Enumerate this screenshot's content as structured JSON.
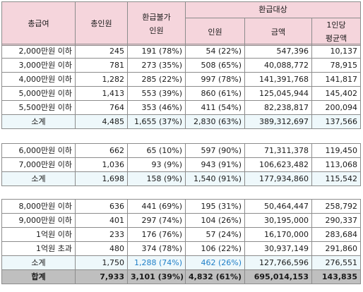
{
  "header": {
    "col_income": "총급여",
    "col_total": "총인원",
    "col_nonrefund": "환급불가\n인원",
    "col_refund_group": "환급대상",
    "col_refund_people": "인원",
    "col_refund_amount": "금액",
    "col_per_capita": "1인당\n평균액"
  },
  "groups": [
    {
      "rows": [
        {
          "cat": "2,000만원 이하",
          "total": "245",
          "nonrefund": "191 (78%)",
          "refund": "54 (22%)",
          "amount": "547,396",
          "avg": "10,137"
        },
        {
          "cat": "3,000만원 이하",
          "total": "781",
          "nonrefund": "273 (35%)",
          "refund": "508 (65%)",
          "amount": "40,088,772",
          "avg": "78,915"
        },
        {
          "cat": "4,000만원 이하",
          "total": "1,282",
          "nonrefund": "285 (22%)",
          "refund": "997 (78%)",
          "amount": "141,391,768",
          "avg": "141,817"
        },
        {
          "cat": "5,000만원 이하",
          "total": "1,413",
          "nonrefund": "553 (39%)",
          "refund": "860 (61%)",
          "amount": "125,045,944",
          "avg": "145,402"
        },
        {
          "cat": "5,500만원 이하",
          "total": "764",
          "nonrefund": "353 (46%)",
          "refund": "411 (54%)",
          "amount": "82,238,817",
          "avg": "200,094"
        }
      ],
      "subtotal": {
        "cat": "소계",
        "total": "4,485",
        "nonrefund": "1,655 (37%)",
        "refund": "2,830 (63%)",
        "amount": "389,312,697",
        "avg": "137,566"
      }
    },
    {
      "rows": [
        {
          "cat": "6,000만원 이하",
          "total": "662",
          "nonrefund": "65 (10%)",
          "refund": "597 (90%)",
          "amount": "71,311,378",
          "avg": "119,450"
        },
        {
          "cat": "7,000만원 이하",
          "total": "1,036",
          "nonrefund": "93 (9%)",
          "refund": "943 (91%)",
          "amount": "106,623,482",
          "avg": "113,068"
        }
      ],
      "subtotal": {
        "cat": "소계",
        "total": "1,698",
        "nonrefund": "158 (9%)",
        "refund": "1,540 (91%)",
        "amount": "177,934,860",
        "avg": "115,542"
      }
    },
    {
      "rows": [
        {
          "cat": "8,000만원 이하",
          "total": "636",
          "nonrefund": "441 (69%)",
          "refund": "195 (31%)",
          "amount": "50,464,447",
          "avg": "258,792"
        },
        {
          "cat": "9,000만원 이하",
          "total": "401",
          "nonrefund": "297 (74%)",
          "refund": "104 (26%)",
          "amount": "30,195,000",
          "avg": "290,337"
        },
        {
          "cat": "1억원 이하",
          "total": "233",
          "nonrefund": "176 (76%)",
          "refund": "57 (24%)",
          "amount": "16,170,000",
          "avg": "283,684"
        },
        {
          "cat": "1억원 초과",
          "total": "480",
          "nonrefund": "374 (78%)",
          "refund": "106 (22%)",
          "amount": "30,937,149",
          "avg": "291,860"
        }
      ],
      "subtotal": {
        "cat": "소계",
        "total": "1,750",
        "nonrefund": "1,288 (74%)",
        "refund": "462 (26%)",
        "amount": "127,766,596",
        "avg": "276,551"
      }
    }
  ],
  "grand_total": {
    "cat": "합계",
    "total": "7,933",
    "nonrefund": "3,101 (39%)",
    "refund": "4,832 (61%)",
    "amount": "695,014,153",
    "avg": "143,835"
  },
  "colors": {
    "header_bg": "#f5d5dc",
    "subtotal_bg": "#eef8fb",
    "total_bg": "#bfbfbf",
    "highlight_text": "#1f7fc8"
  }
}
